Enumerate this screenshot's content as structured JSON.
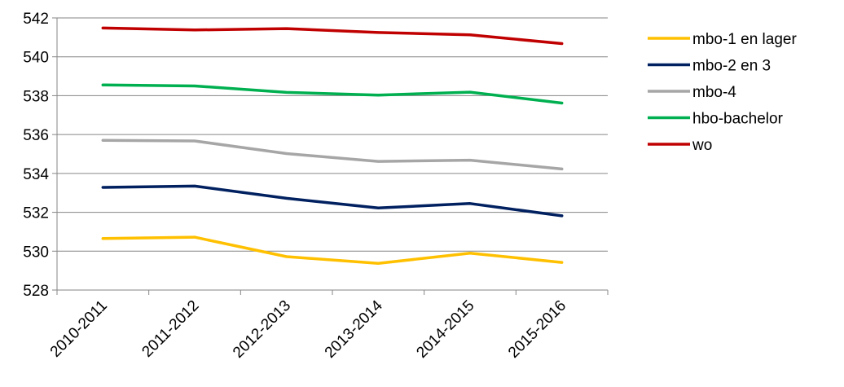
{
  "chart_data": {
    "type": "line",
    "categories": [
      "2010-2011",
      "2011-2012",
      "2012-2013",
      "2013-2014",
      "2014-2015",
      "2015-2016"
    ],
    "series": [
      {
        "name": "mbo-1 en lager",
        "color": "#FFC000",
        "values": [
          530.65,
          530.72,
          529.72,
          529.37,
          529.9,
          529.42
        ]
      },
      {
        "name": "mbo-2 en 3",
        "color": "#002060",
        "values": [
          533.28,
          533.35,
          532.72,
          532.22,
          532.45,
          531.82
        ]
      },
      {
        "name": "mbo-4",
        "color": "#A6A6A6",
        "values": [
          535.7,
          535.67,
          535.02,
          534.62,
          534.68,
          534.23
        ]
      },
      {
        "name": "hbo-bachelor",
        "color": "#00B050",
        "values": [
          538.55,
          538.5,
          538.17,
          538.03,
          538.18,
          537.62
        ]
      },
      {
        "name": "wo",
        "color": "#C00000",
        "values": [
          541.48,
          541.38,
          541.45,
          541.25,
          541.13,
          540.68
        ]
      }
    ],
    "ylim": [
      528,
      542
    ],
    "yticks": [
      528,
      530,
      532,
      534,
      536,
      538,
      540,
      542
    ],
    "title": "",
    "xlabel": "",
    "ylabel": "",
    "grid": true,
    "legend": "right",
    "axis_color": "#868686",
    "grid_color": "#868686"
  }
}
